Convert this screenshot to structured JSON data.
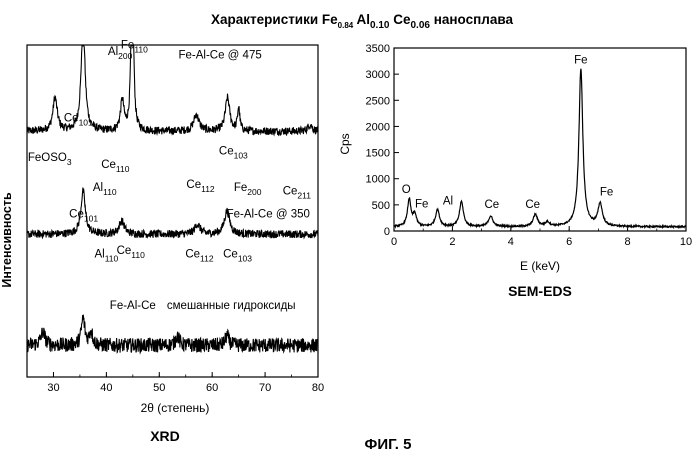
{
  "figure": {
    "title_prefix": "Характеристики Fe",
    "title_sub1": "0.84",
    "title_mid1": " Al",
    "title_sub2": "0.10",
    "title_mid2": " Ce",
    "title_sub3": "0.06",
    "title_suffix": " наносплава",
    "caption": "ФИГ. 5"
  },
  "chart_data": [
    {
      "type": "line",
      "panel_label": "XRD",
      "xlabel": "2θ (степень)",
      "ylabel": "Интенсивность",
      "xlim": [
        25,
        80
      ],
      "x_ticks": [
        "30",
        "40",
        "50",
        "60",
        "70",
        "80"
      ],
      "x_tick_values": [
        30,
        40,
        50,
        60,
        70,
        80
      ],
      "y_ticks": [],
      "series": [
        {
          "name": "Fe-Al-Ce @ 475",
          "baseline": 0.74,
          "noise": 0.012,
          "peaks": [
            {
              "x": 30.3,
              "h": 0.1,
              "w": 0.5
            },
            {
              "x": 35.6,
              "h": 0.32,
              "w": 0.45
            },
            {
              "x": 43.0,
              "h": 0.09,
              "w": 0.4
            },
            {
              "x": 44.9,
              "h": 0.7,
              "w": 0.22
            },
            {
              "x": 57.0,
              "h": 0.05,
              "w": 0.6
            },
            {
              "x": 62.9,
              "h": 0.1,
              "w": 0.5
            },
            {
              "x": 65.0,
              "h": 0.07,
              "w": 0.25
            },
            {
              "x": 78.5,
              "h": 0.02,
              "w": 0.5
            }
          ]
        },
        {
          "name": "Fe-Al-Ce @ 350",
          "baseline": 0.43,
          "noise": 0.012,
          "peaks": [
            {
              "x": 35.6,
              "h": 0.13,
              "w": 0.5
            },
            {
              "x": 42.9,
              "h": 0.04,
              "w": 0.6
            },
            {
              "x": 57.2,
              "h": 0.03,
              "w": 0.6
            },
            {
              "x": 62.8,
              "h": 0.07,
              "w": 0.6
            }
          ]
        },
        {
          "name": "Fe-Al-Ce смешанные гидроксиды",
          "baseline": 0.095,
          "noise": 0.022,
          "peaks": [
            {
              "x": 28.0,
              "h": 0.04,
              "w": 0.5
            },
            {
              "x": 35.6,
              "h": 0.08,
              "w": 0.4
            },
            {
              "x": 37.1,
              "h": 0.04,
              "w": 0.4
            },
            {
              "x": 53.4,
              "h": 0.03,
              "w": 0.4
            },
            {
              "x": 62.8,
              "h": 0.03,
              "w": 0.4
            }
          ]
        }
      ],
      "annotations": [
        {
          "base": "Fe-Al-Ce @ 475",
          "sub": "",
          "x": 61.5,
          "y": 0.96
        },
        {
          "base": "Al",
          "sub": "200",
          "x": 42.6,
          "y": 0.97
        },
        {
          "base": "Fe",
          "sub": "110",
          "x": 45.3,
          "y": 0.99
        },
        {
          "base": "Ce",
          "sub": "101",
          "x": 34.7,
          "y": 0.77
        },
        {
          "base": "Ce",
          "sub": "110",
          "x": 41.7,
          "y": 0.63
        },
        {
          "base": "FeOSO",
          "sub": "3",
          "x": 29.3,
          "y": 0.65
        },
        {
          "base": "Al",
          "sub": "110",
          "x": 39.7,
          "y": 0.56
        },
        {
          "base": "Ce",
          "sub": "103",
          "x": 64.0,
          "y": 0.67
        },
        {
          "base": "Ce",
          "sub": "112",
          "x": 57.8,
          "y": 0.57
        },
        {
          "base": "Fe",
          "sub": "200",
          "x": 66.7,
          "y": 0.56
        },
        {
          "base": "Ce",
          "sub": "211",
          "x": 76.0,
          "y": 0.55
        },
        {
          "base": "Ce",
          "sub": "101",
          "x": 35.7,
          "y": 0.48
        },
        {
          "base": "Fe-Al-Ce @ 350",
          "sub": "",
          "x": 70.6,
          "y": 0.48
        },
        {
          "base": "Al",
          "sub": "110",
          "x": 40.0,
          "y": 0.36
        },
        {
          "base": "Ce",
          "sub": "110",
          "x": 44.6,
          "y": 0.37
        },
        {
          "base": "Ce",
          "sub": "112",
          "x": 57.6,
          "y": 0.36
        },
        {
          "base": "Ce",
          "sub": "103",
          "x": 64.8,
          "y": 0.36
        },
        {
          "base": "Fe-Al-Ce",
          "sub": "",
          "x": 45.0,
          "y": 0.205
        },
        {
          "base": "смешанные гидроксиды",
          "sub": "",
          "x": 63.6,
          "y": 0.205
        }
      ]
    },
    {
      "type": "line",
      "panel_label": "SEM-EDS",
      "xlabel": "E (keV)",
      "ylabel": "Cps",
      "xlim": [
        0,
        10
      ],
      "ylim": [
        0,
        3500
      ],
      "x_ticks": [
        "0",
        "2",
        "4",
        "6",
        "8",
        "10"
      ],
      "x_tick_values": [
        0,
        2,
        4,
        6,
        8,
        10
      ],
      "y_ticks": [
        "0",
        "500",
        "1000",
        "1500",
        "2000",
        "2500",
        "3000",
        "3500"
      ],
      "y_tick_values": [
        0,
        500,
        1000,
        1500,
        2000,
        2500,
        3000,
        3500
      ],
      "series": [
        {
          "name": "",
          "baseline": 80,
          "noise": 15,
          "peaks": [
            {
              "x": 0.52,
              "h": 520,
              "w": 0.07
            },
            {
              "x": 0.71,
              "h": 230,
              "w": 0.07
            },
            {
              "x": 1.49,
              "h": 330,
              "w": 0.08
            },
            {
              "x": 2.31,
              "h": 480,
              "w": 0.08
            },
            {
              "x": 3.31,
              "h": 200,
              "w": 0.09
            },
            {
              "x": 4.84,
              "h": 230,
              "w": 0.09
            },
            {
              "x": 5.26,
              "h": 80,
              "w": 0.09
            },
            {
              "x": 6.4,
              "h": 3020,
              "w": 0.08
            },
            {
              "x": 7.06,
              "h": 430,
              "w": 0.09
            }
          ]
        }
      ],
      "annotations": [
        {
          "base": "O",
          "sub": "",
          "x": 0.42,
          "y": 730
        },
        {
          "base": "Fe",
          "sub": "",
          "x": 0.95,
          "y": 450
        },
        {
          "base": "Al",
          "sub": "",
          "x": 1.85,
          "y": 510
        },
        {
          "base": "Ce",
          "sub": "",
          "x": 3.35,
          "y": 440
        },
        {
          "base": "Ce",
          "sub": "",
          "x": 4.75,
          "y": 440
        },
        {
          "base": "Fe",
          "sub": "",
          "x": 6.4,
          "y": 3200
        },
        {
          "base": "Fe",
          "sub": "",
          "x": 7.28,
          "y": 680
        }
      ]
    }
  ]
}
